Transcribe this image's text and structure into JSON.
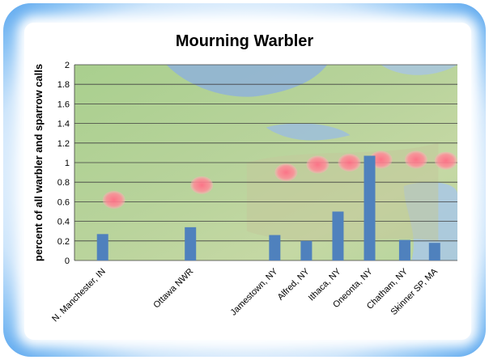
{
  "chart_data": {
    "type": "bar",
    "title": "Mourning Warbler",
    "ylabel": "percent of all warbler and sparrow calls",
    "xlabel": "",
    "ylim": [
      0,
      2
    ],
    "yticks": [
      0,
      0.2,
      0.4,
      0.6,
      0.8,
      1,
      1.2,
      1.4,
      1.6,
      1.8,
      2
    ],
    "ytick_labels": [
      "0",
      "0.2",
      "0.4",
      "0.6",
      "0.8",
      "1",
      "1.2",
      "1.4",
      "1.6",
      "1.8",
      "2"
    ],
    "grid": true,
    "legend": "none",
    "bar_color": "#4f81bd",
    "marker_color": "#ff7b8c",
    "categories": [
      "N. Manchester, IN",
      "Ottawa NWR",
      "Jamestown, NY",
      "Alfred, NY",
      "Ithaca, NY",
      "Oneonta, NY",
      "Chatham, NY",
      "Skinner SP, MA"
    ],
    "x": [
      1,
      3.5,
      5.9,
      6.8,
      7.7,
      8.6,
      9.6,
      10.45
    ],
    "values": [
      0.27,
      0.34,
      0.26,
      0.2,
      0.5,
      1.07,
      0.21,
      0.18
    ],
    "marker_values": [
      0.62,
      0.77,
      0.9,
      0.98,
      1.0,
      1.03,
      1.03,
      1.02
    ],
    "xlim": [
      0.2,
      11.1
    ]
  }
}
